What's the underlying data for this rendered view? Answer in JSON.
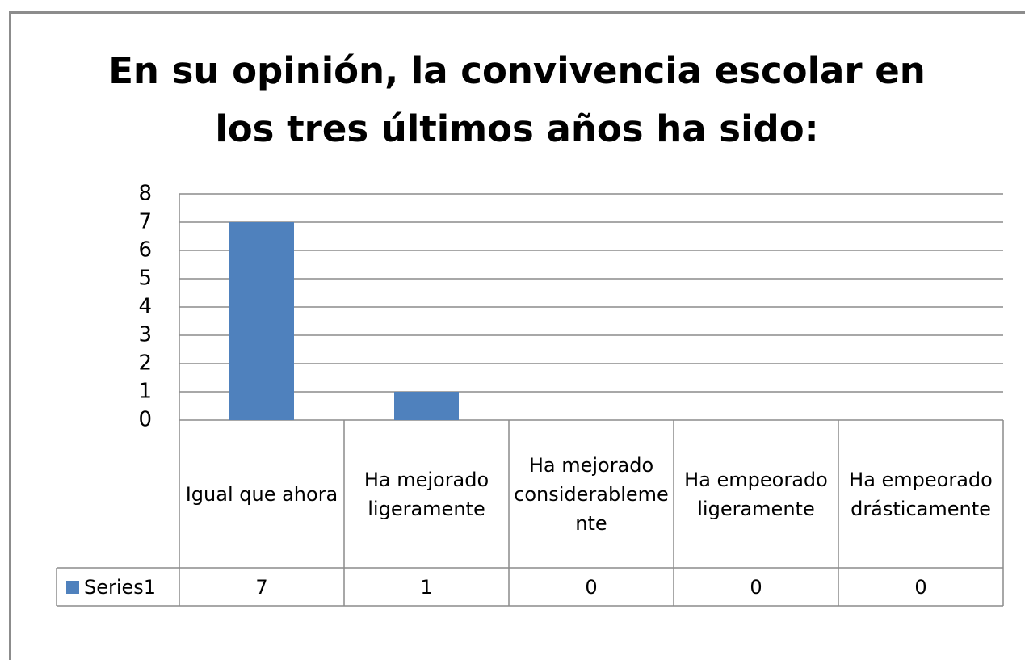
{
  "chart_data": {
    "type": "bar",
    "title": "En su opinión, la convivencia escolar en los tres últimos años ha sido:",
    "categories": [
      "Igual que ahora",
      "Ha mejorado ligeramente",
      "Ha mejorado considerablemente",
      "Ha empeorado ligeramente",
      "Ha empeorado drásticamente"
    ],
    "series": [
      {
        "name": "Series1",
        "color": "#4f81bd",
        "values": [
          7,
          1,
          0,
          0,
          0
        ]
      }
    ],
    "ylim": [
      0,
      8
    ],
    "yticks": [
      0,
      1,
      2,
      3,
      4,
      5,
      6,
      7,
      8
    ],
    "grid": true,
    "data_table": true
  }
}
